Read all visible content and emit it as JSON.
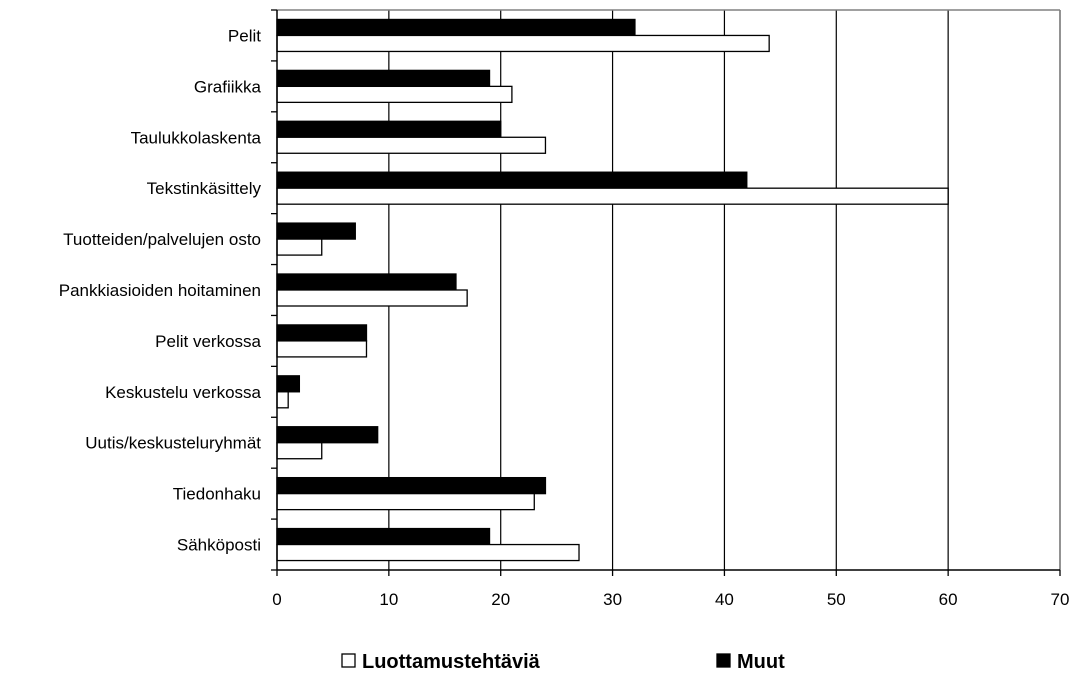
{
  "chart_data": {
    "type": "bar",
    "orientation": "horizontal",
    "categories": [
      "Pelit",
      "Grafiikka",
      "Taulukkolaskenta",
      "Tekstinkäsittely",
      "Tuotteiden/palvelujen osto",
      "Pankkiasioiden hoitaminen",
      "Pelit verkossa",
      "Keskustelu verkossa",
      "Uutis/keskusteluryhmät",
      "Tiedonhaku",
      "Sähköposti"
    ],
    "series": [
      {
        "name": "Muut",
        "color": "#000000",
        "values": [
          32,
          19,
          20,
          42,
          7,
          16,
          8,
          2,
          9,
          24,
          19
        ]
      },
      {
        "name": "Luottamustehtäviä",
        "color": "#ffffff",
        "values": [
          44,
          21,
          24,
          60,
          4,
          17,
          8,
          1,
          4,
          23,
          27
        ]
      }
    ],
    "xlim": [
      0,
      70
    ],
    "xticks": [
      "0",
      "10",
      "20",
      "30",
      "40",
      "50",
      "60",
      "70"
    ],
    "grid": "vertical",
    "legend": {
      "position": "bottom",
      "order": [
        "Luottamustehtäviä",
        "Muut"
      ]
    }
  }
}
